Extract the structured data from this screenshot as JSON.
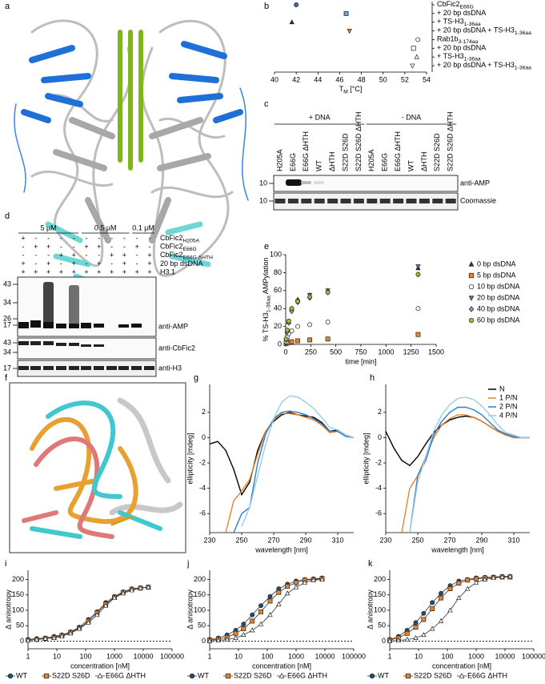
{
  "images": [
    {
      "panel": "a"
    },
    {
      "panel": "f"
    }
  ],
  "gel_c": {
    "panel": "c",
    "headers": [
      "+ DNA",
      "- DNA"
    ],
    "lanes": [
      "H205A",
      "E66G",
      "E66G ΔHTH",
      "WT",
      "ΔHTH",
      "S22D S26D",
      "S22D S26D ΔHTH",
      "H205A",
      "E66G",
      "E66G ΔHTH",
      "WT",
      "ΔHTH",
      "S22D S26D",
      "S22D S26D ΔHTH"
    ],
    "markers": [
      10,
      10
    ],
    "blots": [
      "anti-AMP",
      "Coomassie"
    ]
  },
  "gel_d": {
    "panel": "d",
    "concentrations": [
      "5 µM",
      "0.5 µM",
      "0.1 µM"
    ],
    "rows": [
      {
        "label": [
          "CbFic2",
          "H205A"
        ],
        "signs": [
          "+",
          "-",
          "-",
          "-",
          "-",
          "-",
          "-",
          "-",
          "-",
          "-",
          "-"
        ]
      },
      {
        "label": [
          "CbFic2",
          "E66G"
        ],
        "signs": [
          "-",
          "+",
          "+",
          "-",
          "-",
          "+",
          "+",
          "-",
          "-",
          "+",
          "-"
        ]
      },
      {
        "label": [
          "CbFic2",
          "E66G ΔHTH"
        ],
        "signs": [
          "-",
          "-",
          "-",
          "+",
          "+",
          "-",
          "-",
          "+",
          "+",
          "-",
          "+"
        ]
      },
      {
        "label": "20 bp dsDNA",
        "signs": [
          "+",
          "-",
          "+",
          "-",
          "+",
          "-",
          "+",
          "-",
          "+",
          "-",
          "+"
        ]
      },
      {
        "label": "H3.1",
        "signs": [
          "+",
          "+",
          "+",
          "+",
          "+",
          "+",
          "+",
          "+",
          "+",
          "+",
          "+"
        ]
      }
    ],
    "markers_1": [
      43,
      34,
      26,
      17
    ],
    "markers_2": [
      43,
      34
    ],
    "markers_3": [
      17
    ],
    "blots": [
      "anti-AMP",
      "anti-CbFic2",
      "anti-H3"
    ]
  },
  "chart_data": [
    {
      "panel": "b",
      "type": "dot",
      "xlabel": [
        "T",
        "M",
        " [°C]"
      ],
      "categories": [
        [
          "CbFic2",
          "E66G"
        ],
        "+ 20 bp dsDNA",
        [
          "+ TS-H3",
          "1-36aa"
        ],
        [
          "+ 20 bp dsDNA + TS-H3",
          "1-36aa"
        ],
        [
          "Rab1b",
          "3-174aa"
        ],
        "+ 20 bp dsDNA",
        [
          "+ TS-H3",
          "1-36aa"
        ],
        [
          "+ 20 bp dsDNA + TS-H3",
          "1-36aa"
        ]
      ],
      "values": [
        42,
        46.6,
        41.6,
        46.9,
        53.2,
        52.8,
        53.1,
        52.7
      ],
      "marker_shapes": [
        "circle",
        "square",
        "triangle",
        "triangle-down",
        "circle",
        "square",
        "triangle",
        "triangle-down"
      ],
      "colors": [
        "#3b6fb0",
        "#6fa0d0",
        "#1f3864",
        "#e8832a",
        "#ffffff",
        "#ffffff",
        "#ffffff",
        "#ffffff"
      ],
      "xlim": [
        40,
        54
      ],
      "xticks": [
        40,
        42,
        44,
        46,
        48,
        50,
        52,
        54
      ]
    },
    {
      "panel": "e",
      "type": "scatter",
      "xlabel": "time [min]",
      "ylabel": [
        "% TS-H3",
        "1-36aa",
        " AMPylation"
      ],
      "x": [
        5,
        15,
        30,
        60,
        120,
        240,
        420,
        1320
      ],
      "series": [
        {
          "name": "0 bp dsDNA",
          "color": "#1f3864",
          "marker": "triangle",
          "values": [
            5,
            15,
            25,
            40,
            50,
            55,
            60,
            85
          ]
        },
        {
          "name": "5 bp dsDNA",
          "color": "#e8832a",
          "marker": "square",
          "values": [
            1,
            2,
            2,
            3,
            4,
            5,
            6,
            11
          ]
        },
        {
          "name": "10 bp dsDNA",
          "color": "#ffffff",
          "marker": "circle",
          "values": [
            3,
            8,
            12,
            15,
            20,
            22,
            25,
            40
          ]
        },
        {
          "name": "20 bp dsDNA",
          "color": "#4a7fb5",
          "marker": "triangle-down",
          "values": [
            5,
            15,
            25,
            38,
            48,
            55,
            60,
            87
          ]
        },
        {
          "name": "40 bp dsDNA",
          "color": "#999999",
          "marker": "diamond",
          "values": [
            5,
            14,
            24,
            37,
            47,
            52,
            58,
            78
          ]
        },
        {
          "name": "60 bp dsDNA",
          "color": "#a5b82e",
          "marker": "circle",
          "values": [
            6,
            16,
            26,
            40,
            48,
            53,
            58,
            78
          ]
        }
      ],
      "xlim": [
        0,
        1500
      ],
      "xticks": [
        0,
        250,
        500,
        750,
        1000,
        1250,
        1500
      ],
      "ylim": [
        0,
        100
      ],
      "yticks": [
        0,
        20,
        40,
        60,
        80,
        100
      ],
      "legend": "right"
    },
    {
      "panel": "g",
      "type": "line",
      "xlabel": "wavelength [nm]",
      "ylabel": "ellipticity [mdeg]",
      "x": [
        230,
        235,
        240,
        245,
        250,
        255,
        260,
        265,
        270,
        275,
        280,
        285,
        290,
        295,
        300,
        305,
        310,
        315,
        320
      ],
      "series": [
        {
          "name": "N",
          "color": "#000000",
          "values": [
            -0.5,
            -0.3,
            -1,
            -2.5,
            -4.5,
            -3.5,
            -1,
            0.5,
            1.3,
            1.8,
            2,
            1.8,
            1.7,
            1.6,
            1.2,
            0.5,
            0.6,
            0.2,
            0
          ]
        },
        {
          "name": "1 P/N",
          "color": "#e8832a",
          "values": [
            null,
            null,
            -7.5,
            -5,
            -4.2,
            -3.3,
            -1.3,
            0.5,
            1.4,
            1.9,
            1.9,
            1.8,
            1.6,
            1.4,
            1,
            0.4,
            0.5,
            0.1,
            0
          ]
        },
        {
          "name": "2 P/N",
          "color": "#2a7fc9",
          "values": [
            null,
            null,
            null,
            -7.5,
            -6,
            -5.5,
            -2,
            0.3,
            1.5,
            2,
            2.1,
            2,
            1.8,
            1.5,
            1.1,
            0.5,
            0.5,
            0.1,
            0
          ]
        },
        {
          "name": "4 P/N",
          "color": "#9ccbe8",
          "values": [
            null,
            null,
            null,
            null,
            -7,
            -5.5,
            -3,
            -0.5,
            1.5,
            2.8,
            3.3,
            3.2,
            2.8,
            2.3,
            1.6,
            0.8,
            0.6,
            0.2,
            0
          ]
        }
      ],
      "xlim": [
        230,
        320
      ],
      "xticks": [
        230,
        250,
        270,
        290,
        310
      ],
      "ylim": [
        -7.5,
        4.2
      ],
      "yticks": [
        -6,
        -4,
        -2,
        0,
        2
      ]
    },
    {
      "panel": "h",
      "type": "line",
      "xlabel": "wavelength [nm]",
      "ylabel": "ellipticity [mdeg]",
      "x": [
        230,
        235,
        240,
        245,
        250,
        255,
        260,
        265,
        270,
        275,
        280,
        285,
        290,
        295,
        300,
        305,
        310,
        315,
        320
      ],
      "series": [
        {
          "name": "N",
          "color": "#000000",
          "values": [
            0.5,
            -0.8,
            -1.8,
            -2.2,
            -1.5,
            -0.5,
            0.4,
            1,
            1.4,
            1.6,
            1.7,
            1.6,
            1.3,
            0.9,
            0.5,
            0.2,
            0,
            0,
            0
          ]
        },
        {
          "name": "1 P/N",
          "color": "#e8832a",
          "values": [
            null,
            null,
            -7.5,
            -4,
            -3,
            -1.5,
            0,
            1,
            1.5,
            1.8,
            1.8,
            1.6,
            1.3,
            0.9,
            0.5,
            0.2,
            0,
            0,
            0
          ]
        },
        {
          "name": "2 P/N",
          "color": "#2a7fc9",
          "values": [
            null,
            null,
            null,
            -7.5,
            -3,
            -1.8,
            0.2,
            1.3,
            2,
            2.4,
            2.4,
            2.2,
            1.8,
            1.2,
            0.6,
            0.3,
            0.1,
            0,
            0
          ]
        },
        {
          "name": "4 P/N",
          "color": "#9ccbe8",
          "values": [
            null,
            null,
            null,
            -7.5,
            -3.5,
            -1.5,
            0.5,
            1.8,
            2.6,
            3.1,
            3.2,
            3,
            2.5,
            1.8,
            1,
            0.4,
            0.2,
            0,
            0
          ]
        }
      ],
      "xlim": [
        230,
        320
      ],
      "xticks": [
        230,
        250,
        270,
        290,
        310
      ],
      "ylim": [
        -7.5,
        4.2
      ],
      "yticks": [
        -6,
        -4,
        -2,
        0,
        2
      ],
      "legend": "upper right"
    },
    {
      "panel": "i",
      "type": "line",
      "markers": true,
      "xscale": "log",
      "zero_line": true,
      "xlabel": "concentration [nM]",
      "ylabel": "Δ anisotropy",
      "x": [
        1,
        2,
        4,
        8,
        15,
        30,
        60,
        125,
        250,
        500,
        1000,
        2000,
        4000,
        8000,
        15000
      ],
      "series": [
        {
          "name": "WT",
          "color": "#1f4e79",
          "marker": "circle",
          "values": [
            5,
            8,
            10,
            15,
            20,
            30,
            45,
            70,
            95,
            125,
            145,
            160,
            170,
            173,
            175
          ]
        },
        {
          "name": "S22D S26D",
          "color": "#e8832a",
          "marker": "square",
          "values": [
            3,
            5,
            8,
            12,
            18,
            28,
            42,
            65,
            92,
            120,
            142,
            158,
            168,
            172,
            175
          ]
        },
        {
          "name": "E66G ΔHTH",
          "color": "#ffffff",
          "marker": "triangle",
          "values": [
            2,
            5,
            8,
            10,
            15,
            25,
            40,
            60,
            85,
            115,
            140,
            155,
            165,
            172,
            175
          ]
        }
      ],
      "xlim": [
        1,
        100000
      ],
      "xticks": [
        1,
        10,
        100,
        1000,
        10000,
        100000
      ],
      "ylim": [
        -25,
        230
      ],
      "yticks": [
        0,
        50,
        100,
        150,
        200
      ],
      "legend": "bottom"
    },
    {
      "panel": "j",
      "type": "line",
      "markers": true,
      "xscale": "log",
      "zero_line": true,
      "xlabel": "concentration [nM]",
      "ylabel": "Δ anisotropy",
      "x": [
        1,
        2,
        4,
        8,
        15,
        30,
        60,
        125,
        250,
        500,
        1000,
        2000,
        4000,
        8000
      ],
      "series": [
        {
          "name": "WT",
          "color": "#1f4e79",
          "marker": "circle",
          "values": [
            5,
            10,
            20,
            35,
            55,
            85,
            115,
            145,
            170,
            185,
            195,
            200,
            202,
            205
          ]
        },
        {
          "name": "S22D S26D",
          "color": "#e8832a",
          "marker": "square",
          "values": [
            3,
            6,
            12,
            25,
            40,
            65,
            95,
            130,
            158,
            178,
            190,
            198,
            200,
            203
          ]
        },
        {
          "name": "E66G ΔHTH",
          "color": "#ffffff",
          "marker": "triangle",
          "values": [
            0,
            2,
            5,
            10,
            20,
            35,
            55,
            85,
            120,
            155,
            175,
            190,
            198,
            200
          ]
        }
      ],
      "xlim": [
        1,
        100000
      ],
      "xticks": [
        1,
        10,
        100,
        1000,
        10000,
        100000
      ],
      "ylim": [
        -25,
        230
      ],
      "yticks": [
        0,
        50,
        100,
        150,
        200
      ],
      "legend": "bottom"
    },
    {
      "panel": "k",
      "type": "line",
      "markers": true,
      "xscale": "log",
      "zero_line": true,
      "xlabel": "concentration [nM]",
      "ylabel": "Δ anisotropy",
      "x": [
        1,
        2,
        4,
        8,
        15,
        30,
        60,
        125,
        250,
        500,
        1000,
        2000,
        4000,
        8000,
        15000
      ],
      "series": [
        {
          "name": "WT",
          "color": "#1f4e79",
          "marker": "circle",
          "values": [
            5,
            15,
            35,
            60,
            90,
            125,
            155,
            180,
            195,
            200,
            205,
            207,
            208,
            210,
            210
          ]
        },
        {
          "name": "S22D S26D",
          "color": "#e8832a",
          "marker": "square",
          "values": [
            3,
            10,
            25,
            45,
            70,
            105,
            140,
            170,
            188,
            198,
            202,
            205,
            207,
            208,
            208
          ]
        },
        {
          "name": "E66G ΔHTH",
          "color": "#ffffff",
          "marker": "triangle",
          "values": [
            0,
            2,
            5,
            10,
            20,
            40,
            65,
            100,
            140,
            170,
            190,
            200,
            205,
            208,
            210
          ]
        }
      ],
      "xlim": [
        1,
        100000
      ],
      "xticks": [
        1,
        10,
        100,
        1000,
        10000,
        100000
      ],
      "ylim": [
        -25,
        230
      ],
      "yticks": [
        0,
        50,
        100,
        150,
        200
      ],
      "legend": "bottom"
    }
  ]
}
